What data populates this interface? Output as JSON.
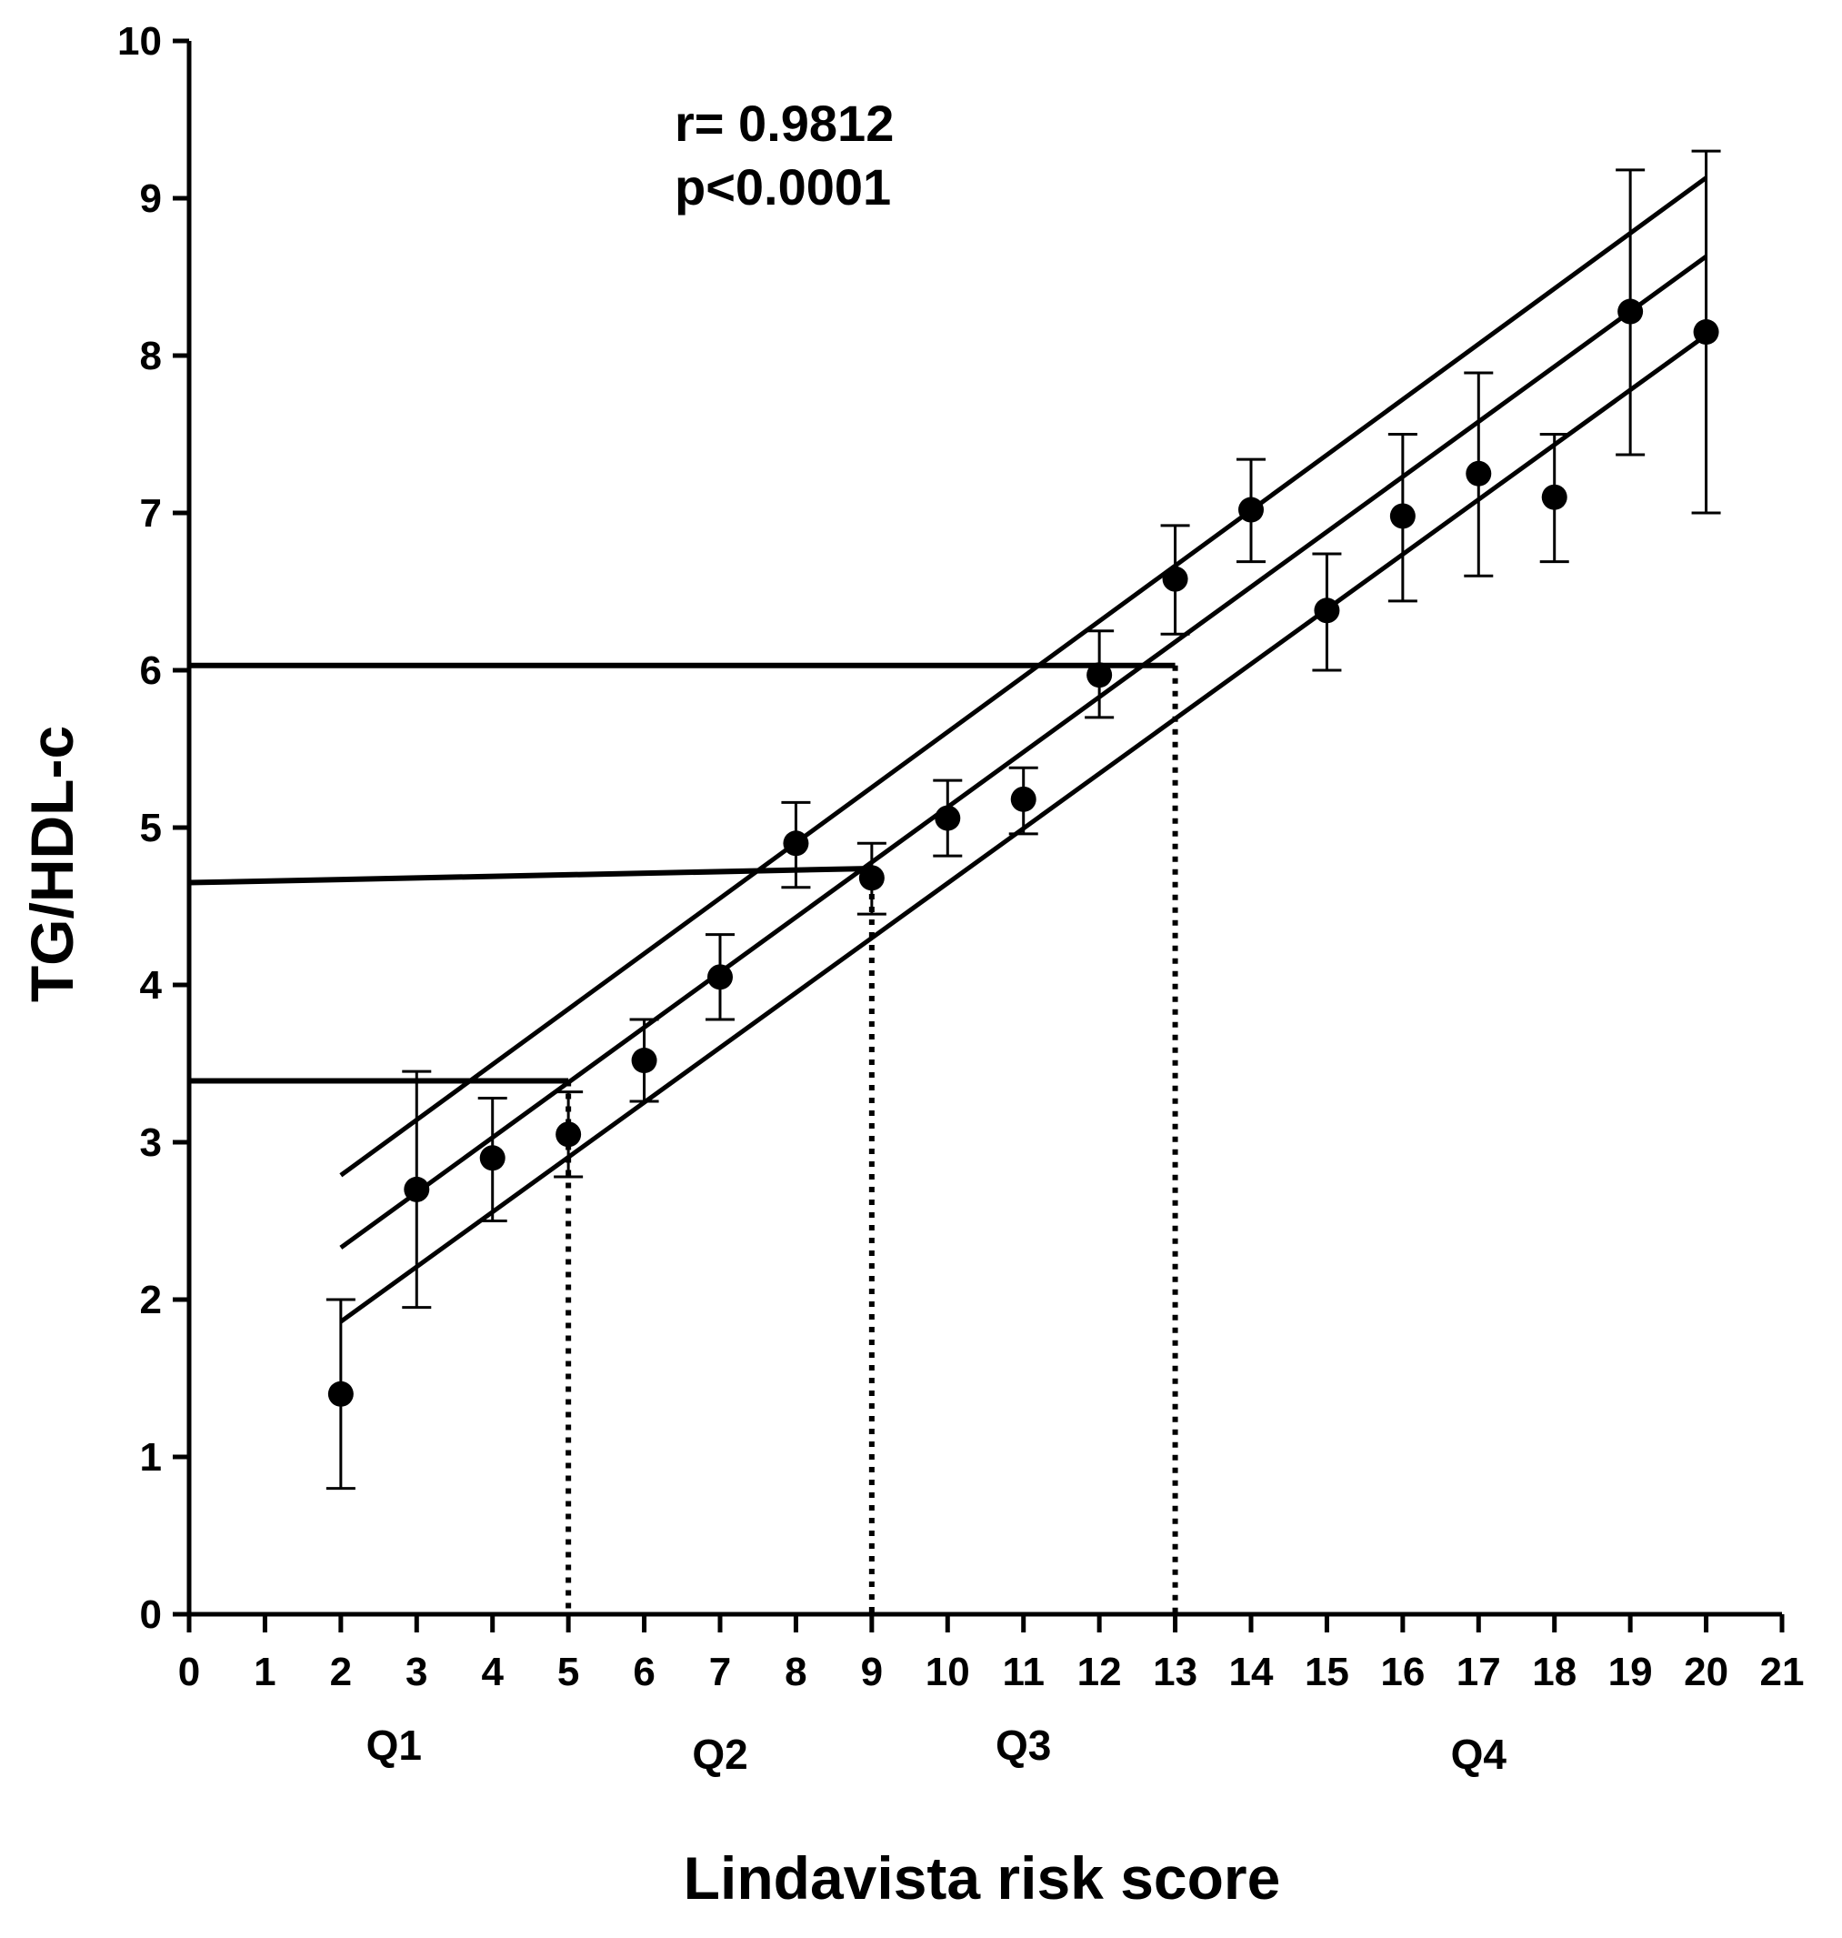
{
  "chart_data": {
    "type": "scatter",
    "xlabel": "Lindavista risk score",
    "ylabel": "TG/HDL-c",
    "xlim": [
      0,
      21
    ],
    "ylim": [
      0,
      10
    ],
    "x_ticks": [
      "0",
      "1",
      "2",
      "3",
      "4",
      "5",
      "6",
      "7",
      "8",
      "9",
      "10",
      "11",
      "12",
      "13",
      "14",
      "15",
      "16",
      "17",
      "18",
      "19",
      "20",
      "21"
    ],
    "y_ticks": [
      "0",
      "1",
      "2",
      "3",
      "4",
      "5",
      "6",
      "7",
      "8",
      "9",
      "10"
    ],
    "grid": false,
    "annotations": {
      "r": "r= 0.9812",
      "p": "p<0.0001"
    },
    "quartiles": [
      {
        "label": "Q1",
        "x": 2.7
      },
      {
        "label": "Q2",
        "x": 7.0
      },
      {
        "label": "Q3",
        "x": 11.0
      },
      {
        "label": "Q4",
        "x": 17.0
      }
    ],
    "points": [
      {
        "x": 2,
        "y": 1.4,
        "err_low": 0.8,
        "err_high": 2.0
      },
      {
        "x": 3,
        "y": 2.7,
        "err_low": 1.95,
        "err_high": 3.45
      },
      {
        "x": 4,
        "y": 2.9,
        "err_low": 2.5,
        "err_high": 3.28
      },
      {
        "x": 5,
        "y": 3.05,
        "err_low": 2.78,
        "err_high": 3.32
      },
      {
        "x": 6,
        "y": 3.52,
        "err_low": 3.26,
        "err_high": 3.78
      },
      {
        "x": 7,
        "y": 4.05,
        "err_low": 3.78,
        "err_high": 4.32
      },
      {
        "x": 8,
        "y": 4.9,
        "err_low": 4.62,
        "err_high": 5.16
      },
      {
        "x": 9,
        "y": 4.68,
        "err_low": 4.45,
        "err_high": 4.9
      },
      {
        "x": 10,
        "y": 5.06,
        "err_low": 4.82,
        "err_high": 5.3
      },
      {
        "x": 11,
        "y": 5.18,
        "err_low": 4.96,
        "err_high": 5.38
      },
      {
        "x": 12,
        "y": 5.97,
        "err_low": 5.7,
        "err_high": 6.25
      },
      {
        "x": 13,
        "y": 6.58,
        "err_low": 6.23,
        "err_high": 6.92
      },
      {
        "x": 14,
        "y": 7.02,
        "err_low": 6.69,
        "err_high": 7.34
      },
      {
        "x": 15,
        "y": 6.38,
        "err_low": 6.0,
        "err_high": 6.74
      },
      {
        "x": 16,
        "y": 6.98,
        "err_low": 6.44,
        "err_high": 7.5
      },
      {
        "x": 17,
        "y": 7.25,
        "err_low": 6.6,
        "err_high": 7.89
      },
      {
        "x": 18,
        "y": 7.1,
        "err_low": 6.69,
        "err_high": 7.5
      },
      {
        "x": 19,
        "y": 8.28,
        "err_low": 7.37,
        "err_high": 9.18
      },
      {
        "x": 20,
        "y": 8.15,
        "err_low": 7.0,
        "err_high": 9.3
      }
    ],
    "regression": {
      "fit": [
        [
          2,
          2.33
        ],
        [
          20,
          8.63
        ]
      ],
      "upper": [
        [
          2,
          2.79
        ],
        [
          20,
          9.13
        ]
      ],
      "lower": [
        [
          2,
          1.86
        ],
        [
          20,
          8.13
        ]
      ]
    },
    "reference_lines": {
      "horizontal": [
        {
          "y_start": 3.39,
          "y_end": 3.39,
          "x_end": 5
        },
        {
          "y_start": 4.65,
          "y_end": 4.74,
          "x_end": 9
        },
        {
          "y_start": 6.03,
          "y_end": 6.03,
          "x_end": 13
        }
      ],
      "vertical_dotted": [
        {
          "x": 5,
          "y_top": 3.39
        },
        {
          "x": 9,
          "y_top": 4.74
        },
        {
          "x": 13,
          "y_top": 6.03
        }
      ]
    }
  }
}
